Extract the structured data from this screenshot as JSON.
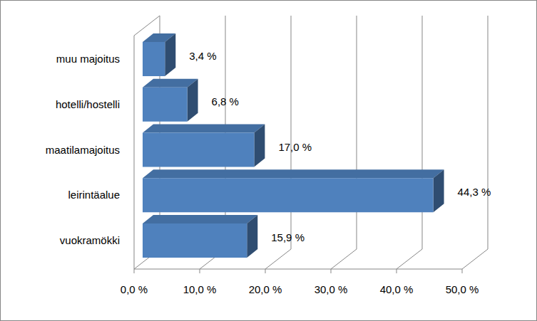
{
  "chart_data": {
    "type": "bar",
    "orientation": "horizontal",
    "categories": [
      "vuokramökki",
      "leirintäalue",
      "maatilamajoitus",
      "hotelli/hostelli",
      "muu majoitus"
    ],
    "values": [
      15.9,
      44.3,
      17.0,
      6.8,
      3.4
    ],
    "value_labels": [
      "15,9 %",
      "44,3 %",
      "17,0 %",
      "6,8 %",
      "3,4 %"
    ],
    "color": "#4f81bd",
    "xlim": [
      0,
      50
    ],
    "xticks": [
      {
        "value": 0,
        "label": "0,0 %"
      },
      {
        "value": 10,
        "label": "10,0 %"
      },
      {
        "value": 20,
        "label": "20,0 %"
      },
      {
        "value": 30,
        "label": "30,0 %"
      },
      {
        "value": 40,
        "label": "40,0 %"
      },
      {
        "value": 50,
        "label": "50,0 %"
      }
    ],
    "grid": true,
    "data_labels": true
  }
}
